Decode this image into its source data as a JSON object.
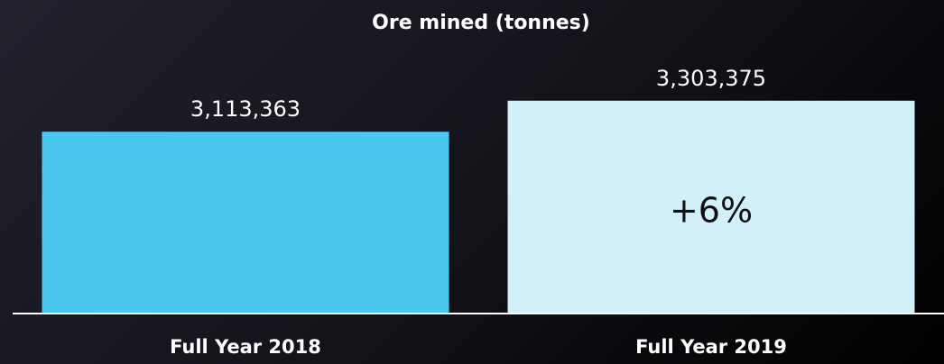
{
  "chart_data": {
    "type": "bar",
    "title": "Ore mined (tonnes)",
    "categories": [
      "Full Year 2018",
      "Full Year 2019"
    ],
    "values": [
      3113363,
      3303375
    ],
    "value_labels": [
      "3,113,363",
      "3,303,375"
    ],
    "colors": [
      "#4bc8ef",
      "#d2f0f9"
    ],
    "annotation": "+6%",
    "ylim": [
      2000000,
      3600000
    ]
  }
}
